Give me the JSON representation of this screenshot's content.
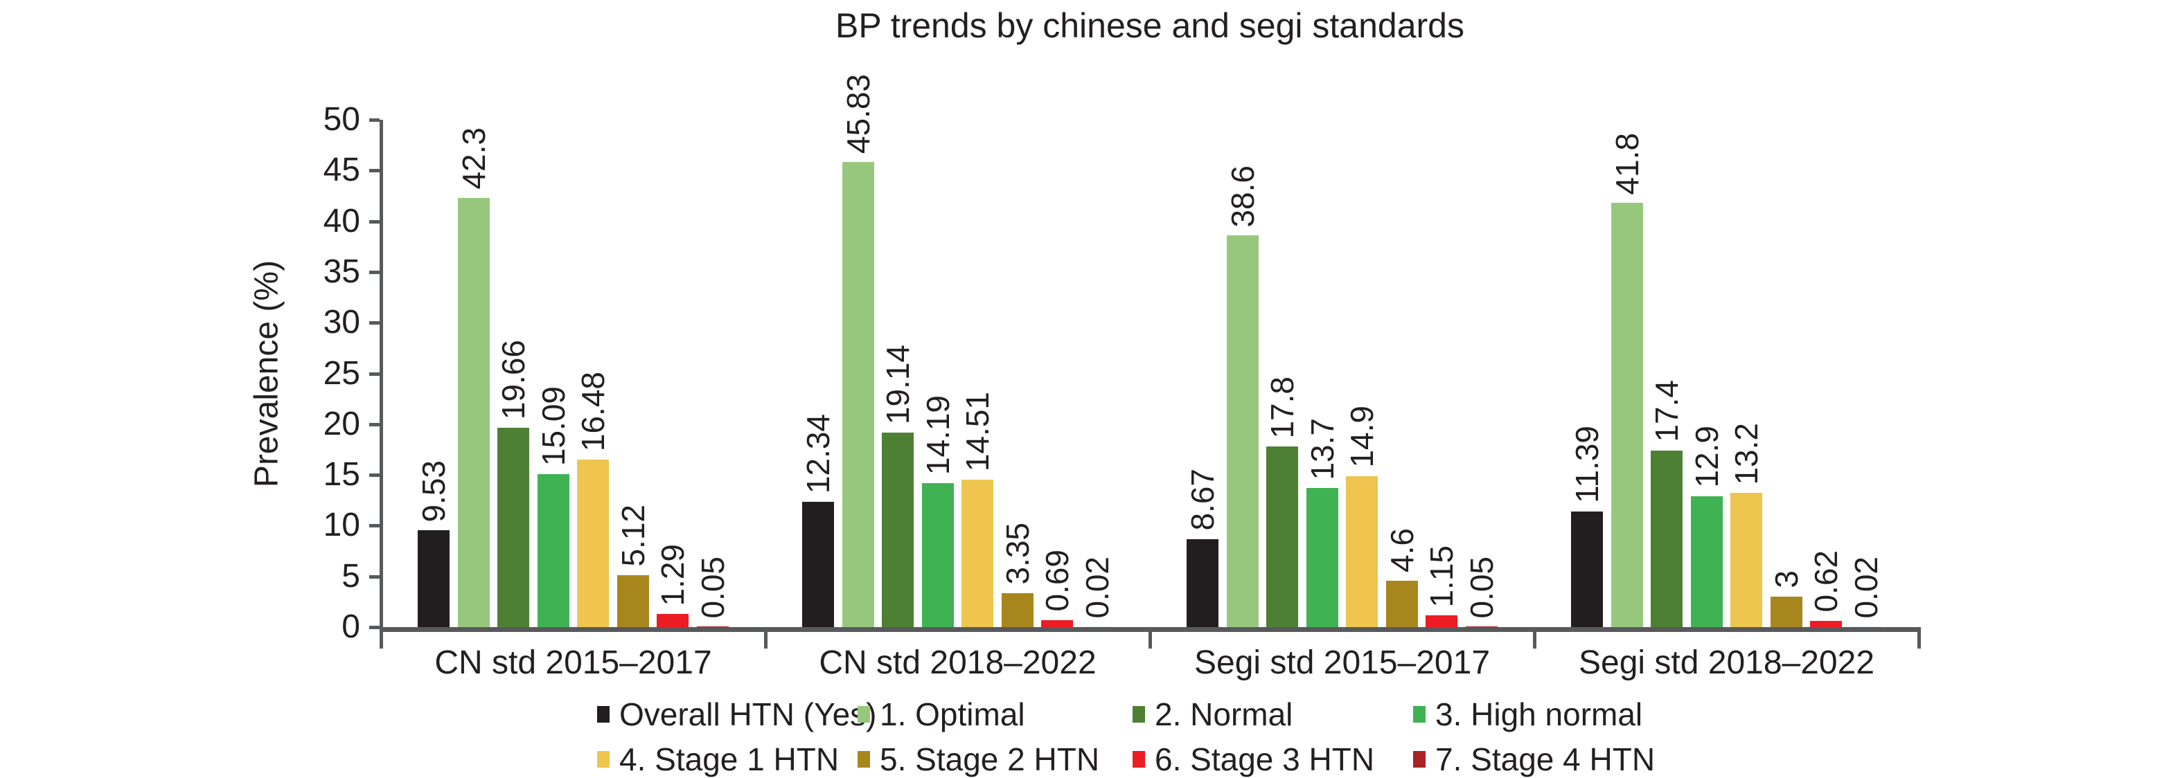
{
  "title": "BP trends by chinese and segi standards",
  "colors": {
    "axis": "#58595B",
    "text": "#231F20",
    "background": "#FFFFFF"
  },
  "chart_data": {
    "type": "bar",
    "title": "BP trends by chinese and segi standards",
    "xlabel": "",
    "ylabel": "Prevalence (%)",
    "ylim": [
      0,
      50
    ],
    "yticks": [
      0,
      5,
      10,
      15,
      20,
      25,
      30,
      35,
      40,
      45,
      50
    ],
    "grid": false,
    "legend_position": "bottom",
    "value_labels_rotated": true,
    "categories": [
      "CN std 2015–2017",
      "CN std 2018–2022",
      "Segi std 2015–2017",
      "Segi std 2018–2022"
    ],
    "series": [
      {
        "name": "Overall HTN (Yes)",
        "color": "#221E1F",
        "values": [
          9.53,
          12.34,
          8.67,
          11.39
        ],
        "labels": [
          "9.53",
          "12.34",
          "8.67",
          "11.39"
        ]
      },
      {
        "name": "1. Optimal",
        "color": "#97C77D",
        "values": [
          42.3,
          45.83,
          38.6,
          41.8
        ],
        "labels": [
          "42.3",
          "45.83",
          "38.6",
          "41.8"
        ]
      },
      {
        "name": "2. Normal",
        "color": "#4E8033",
        "values": [
          19.66,
          19.14,
          17.8,
          17.4
        ],
        "labels": [
          "19.66",
          "19.14",
          "17.8",
          "17.4"
        ]
      },
      {
        "name": "3. High normal",
        "color": "#3FB254",
        "values": [
          15.09,
          14.19,
          13.7,
          12.9
        ],
        "labels": [
          "15.09",
          "14.19",
          "13.7",
          "12.9"
        ]
      },
      {
        "name": "4. Stage 1 HTN",
        "color": "#EDC54F",
        "values": [
          16.48,
          14.51,
          14.9,
          13.2
        ],
        "labels": [
          "16.48",
          "14.51",
          "14.9",
          "13.2"
        ]
      },
      {
        "name": "5. Stage 2 HTN",
        "color": "#A8861E",
        "values": [
          5.12,
          3.35,
          4.6,
          3
        ],
        "labels": [
          "5.12",
          "3.35",
          "4.6",
          "3"
        ]
      },
      {
        "name": "6. Stage 3 HTN",
        "color": "#EC1C24",
        "values": [
          1.29,
          0.69,
          1.15,
          0.62
        ],
        "labels": [
          "1.29",
          "0.69",
          "1.15",
          "0.62"
        ]
      },
      {
        "name": "7. Stage 4 HTN",
        "color": "#A92129",
        "values": [
          0.05,
          0.02,
          0.05,
          0.02
        ],
        "labels": [
          "0.05",
          "0.02",
          "0.05",
          "0.02"
        ]
      }
    ]
  }
}
